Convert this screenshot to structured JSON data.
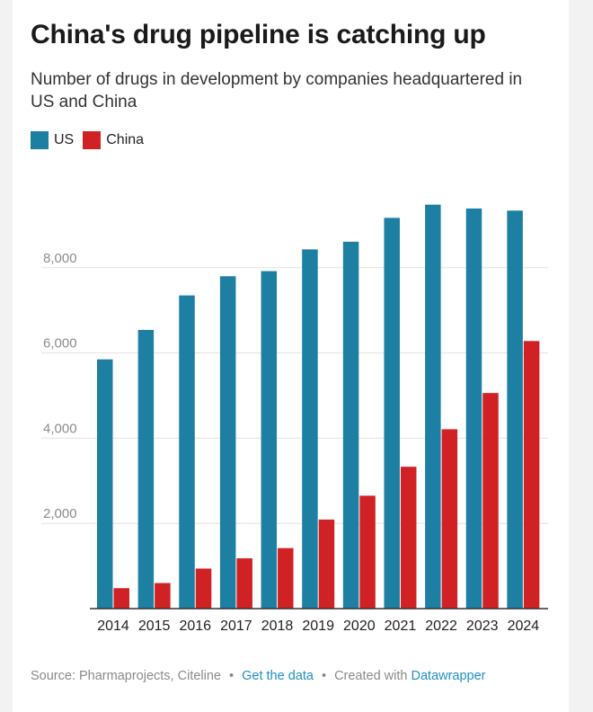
{
  "title": "China's drug pipeline is catching up",
  "subtitle": "Number of drugs in development by companies headquartered in US and China",
  "colors": {
    "us": "#1d7fa1",
    "china": "#d02224",
    "grid": "#e2e2e2",
    "axis": "#333333",
    "tick_text": "#8c8c8c"
  },
  "footer": {
    "source": "Source: Pharmaprojects, Citeline",
    "separator": "•",
    "get_data": "Get the data",
    "created_with": "Created with",
    "tool": "Datawrapper"
  },
  "chart_data": {
    "type": "bar",
    "categories": [
      "2014",
      "2015",
      "2016",
      "2017",
      "2018",
      "2019",
      "2020",
      "2021",
      "2022",
      "2023",
      "2024"
    ],
    "series": [
      {
        "name": "US",
        "color": "#1d7fa1",
        "values": [
          5850,
          6540,
          7350,
          7800,
          7920,
          8430,
          8610,
          9170,
          9480,
          9390,
          9340
        ]
      },
      {
        "name": "China",
        "color": "#d02224",
        "values": [
          480,
          600,
          940,
          1180,
          1420,
          2090,
          2650,
          3330,
          4210,
          5060,
          6280
        ]
      }
    ],
    "yticks": [
      2000,
      4000,
      6000,
      8000
    ],
    "ytick_labels": [
      "2,000",
      "4,000",
      "6,000",
      "8,000"
    ],
    "ylim": [
      0,
      10000
    ],
    "grid": true,
    "legend": "top-left",
    "xlabel": "",
    "ylabel": ""
  }
}
